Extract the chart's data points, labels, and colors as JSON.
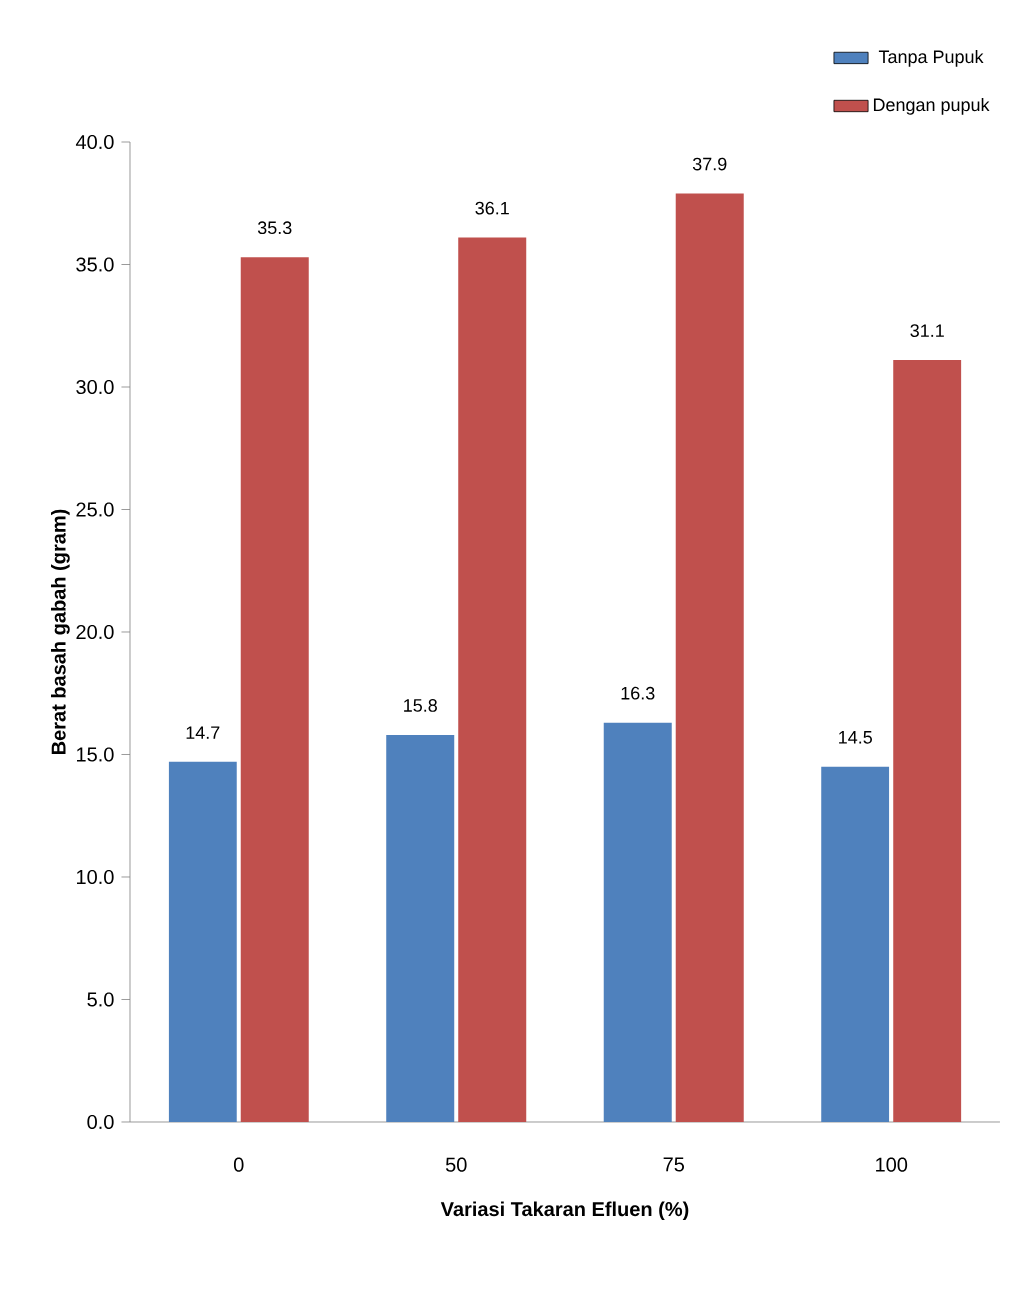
{
  "chart_data": {
    "type": "bar",
    "xlabel": "Variasi Takaran Efluen (%)",
    "ylabel": "Berat basah gabah (gram)",
    "categories": [
      "0",
      "50",
      "75",
      "100"
    ],
    "series": [
      {
        "name": "Tanpa Pupuk",
        "color": "#4f81bd",
        "values": [
          14.7,
          15.8,
          16.3,
          14.5
        ]
      },
      {
        "name": "Dengan pupuk",
        "color": "#c0504d",
        "values": [
          35.3,
          36.1,
          37.9,
          31.1
        ]
      }
    ],
    "ylim": [
      0,
      40
    ],
    "yticks": [
      {
        "value": 0,
        "label": "0.0"
      },
      {
        "value": 5,
        "label": "5.0"
      },
      {
        "value": 10,
        "label": "10.0"
      },
      {
        "value": 15,
        "label": "15.0"
      },
      {
        "value": 20,
        "label": "20.0"
      },
      {
        "value": 25,
        "label": "25.0"
      },
      {
        "value": 30,
        "label": "30.0"
      },
      {
        "value": 35,
        "label": "35.0"
      },
      {
        "value": 40,
        "label": "40.0"
      }
    ],
    "data_labels": true,
    "legend": "top right",
    "grid": false
  }
}
